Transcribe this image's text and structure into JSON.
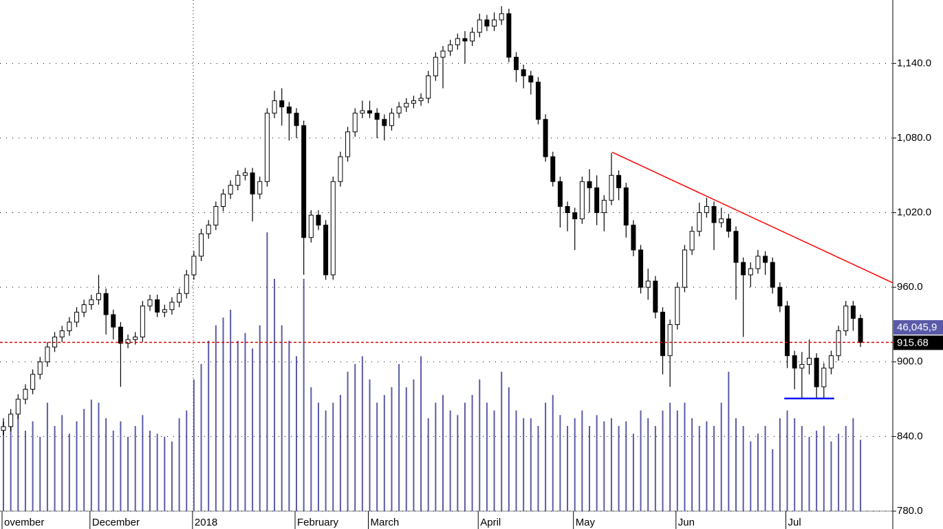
{
  "chart_data": {
    "type": "candlestick",
    "up_color": "#ffffff",
    "down_color": "#000000",
    "volume_color": "#5a5aa8",
    "ylim": [
      780,
      1191
    ],
    "vlim": [
      0,
      330
    ],
    "yticks": [
      {
        "value": 780,
        "label": "780.0"
      },
      {
        "value": 840,
        "label": "840.0"
      },
      {
        "value": 900,
        "label": "900.0"
      },
      {
        "value": 960,
        "label": "960.0"
      },
      {
        "value": 1020,
        "label": "1,020.0"
      },
      {
        "value": 1080,
        "label": "1,080.0"
      },
      {
        "value": 1140,
        "label": "1,140.0"
      }
    ],
    "grid": true,
    "last_volume_label": "46,045,9",
    "reference_color": "#dd0000",
    "categories": [
      "ovember",
      null,
      null,
      null,
      null,
      null,
      null,
      null,
      null,
      null,
      null,
      null,
      "December",
      null,
      null,
      null,
      null,
      null,
      null,
      null,
      null,
      null,
      null,
      null,
      null,
      null,
      "2018",
      null,
      null,
      null,
      null,
      null,
      null,
      null,
      null,
      null,
      null,
      null,
      null,
      null,
      "February",
      null,
      null,
      null,
      null,
      null,
      null,
      null,
      null,
      null,
      "March",
      null,
      null,
      null,
      null,
      null,
      null,
      null,
      null,
      null,
      null,
      null,
      null,
      null,
      null,
      "April",
      null,
      null,
      null,
      null,
      null,
      null,
      null,
      null,
      null,
      null,
      null,
      null,
      "May",
      null,
      null,
      null,
      null,
      null,
      null,
      null,
      null,
      null,
      null,
      null,
      null,
      null,
      "Jun",
      null,
      null,
      null,
      null,
      null,
      null,
      null,
      null,
      null,
      null,
      null,
      null,
      null,
      null,
      "Jul",
      null,
      null,
      null,
      null,
      null,
      null,
      null,
      null,
      null,
      null
    ],
    "ohlc": [
      [
        845,
        852,
        841,
        848
      ],
      [
        848,
        862,
        844,
        858
      ],
      [
        858,
        874,
        854,
        870
      ],
      [
        870,
        882,
        866,
        878
      ],
      [
        878,
        894,
        874,
        890
      ],
      [
        890,
        904,
        886,
        900
      ],
      [
        900,
        916,
        896,
        912
      ],
      [
        912,
        924,
        908,
        920
      ],
      [
        920,
        929,
        916,
        925
      ],
      [
        925,
        936,
        921,
        932
      ],
      [
        932,
        944,
        928,
        940
      ],
      [
        940,
        950,
        936,
        946
      ],
      [
        946,
        954,
        942,
        950
      ],
      [
        950,
        970,
        946,
        955
      ],
      [
        955,
        959,
        922,
        938
      ],
      [
        938,
        942,
        918,
        928
      ],
      [
        928,
        932,
        880,
        915
      ],
      [
        915,
        922,
        911,
        918
      ],
      [
        918,
        924,
        914,
        920
      ],
      [
        920,
        949,
        916,
        945
      ],
      [
        945,
        954,
        941,
        950
      ],
      [
        950,
        954,
        936,
        940
      ],
      [
        940,
        946,
        936,
        942
      ],
      [
        942,
        952,
        938,
        948
      ],
      [
        948,
        959,
        944,
        955
      ],
      [
        955,
        974,
        951,
        970
      ],
      [
        970,
        989,
        966,
        985
      ],
      [
        985,
        1007,
        981,
        1003
      ],
      [
        1003,
        1014,
        999,
        1010
      ],
      [
        1010,
        1029,
        1006,
        1025
      ],
      [
        1025,
        1039,
        1021,
        1035
      ],
      [
        1035,
        1046,
        1031,
        1042
      ],
      [
        1042,
        1054,
        1038,
        1050
      ],
      [
        1050,
        1056,
        1046,
        1052
      ],
      [
        1052,
        1056,
        1013,
        1035
      ],
      [
        1035,
        1049,
        1031,
        1045
      ],
      [
        1045,
        1104,
        1041,
        1100
      ],
      [
        1100,
        1118,
        1096,
        1110
      ],
      [
        1110,
        1120,
        1090,
        1105
      ],
      [
        1105,
        1109,
        1078,
        1100
      ],
      [
        1100,
        1104,
        1080,
        1090
      ],
      [
        1090,
        1094,
        970,
        1000
      ],
      [
        1000,
        1022,
        996,
        1018
      ],
      [
        1018,
        1022,
        1006,
        1010
      ],
      [
        1010,
        1014,
        966,
        970
      ],
      [
        970,
        1049,
        966,
        1045
      ],
      [
        1045,
        1069,
        1041,
        1065
      ],
      [
        1065,
        1089,
        1061,
        1085
      ],
      [
        1085,
        1104,
        1081,
        1100
      ],
      [
        1100,
        1110,
        1096,
        1102
      ],
      [
        1102,
        1110,
        1096,
        1100
      ],
      [
        1100,
        1104,
        1080,
        1095
      ],
      [
        1095,
        1099,
        1078,
        1090
      ],
      [
        1090,
        1104,
        1086,
        1100
      ],
      [
        1100,
        1109,
        1096,
        1105
      ],
      [
        1105,
        1112,
        1101,
        1108
      ],
      [
        1108,
        1114,
        1104,
        1110
      ],
      [
        1110,
        1116,
        1106,
        1112
      ],
      [
        1112,
        1134,
        1108,
        1130
      ],
      [
        1130,
        1149,
        1126,
        1145
      ],
      [
        1145,
        1154,
        1120,
        1150
      ],
      [
        1150,
        1159,
        1146,
        1155
      ],
      [
        1155,
        1164,
        1151,
        1160
      ],
      [
        1160,
        1166,
        1140,
        1158
      ],
      [
        1158,
        1169,
        1154,
        1165
      ],
      [
        1165,
        1180,
        1161,
        1175
      ],
      [
        1175,
        1179,
        1166,
        1170
      ],
      [
        1170,
        1181,
        1166,
        1175
      ],
      [
        1175,
        1186,
        1171,
        1180
      ],
      [
        1180,
        1184,
        1141,
        1145
      ],
      [
        1145,
        1149,
        1125,
        1135
      ],
      [
        1135,
        1139,
        1120,
        1130
      ],
      [
        1130,
        1134,
        1115,
        1125
      ],
      [
        1125,
        1129,
        1091,
        1095
      ],
      [
        1095,
        1099,
        1061,
        1065
      ],
      [
        1065,
        1069,
        1041,
        1045
      ],
      [
        1045,
        1049,
        1008,
        1025
      ],
      [
        1025,
        1029,
        1005,
        1020
      ],
      [
        1020,
        1024,
        990,
        1015
      ],
      [
        1015,
        1049,
        1011,
        1045
      ],
      [
        1045,
        1055,
        1020,
        1040
      ],
      [
        1040,
        1050,
        1010,
        1020
      ],
      [
        1020,
        1034,
        1005,
        1030
      ],
      [
        1030,
        1068,
        1026,
        1050
      ],
      [
        1050,
        1054,
        1030,
        1040
      ],
      [
        1040,
        1044,
        1000,
        1010
      ],
      [
        1010,
        1014,
        985,
        990
      ],
      [
        990,
        994,
        955,
        960
      ],
      [
        960,
        975,
        950,
        965
      ],
      [
        965,
        969,
        935,
        940
      ],
      [
        940,
        944,
        890,
        905
      ],
      [
        905,
        934,
        880,
        930
      ],
      [
        930,
        964,
        926,
        960
      ],
      [
        960,
        994,
        956,
        990
      ],
      [
        990,
        1009,
        986,
        1005
      ],
      [
        1005,
        1028,
        1001,
        1020
      ],
      [
        1020,
        1032,
        1016,
        1025
      ],
      [
        1025,
        1029,
        990,
        1012
      ],
      [
        1012,
        1024,
        1008,
        1015
      ],
      [
        1015,
        1019,
        1000,
        1005
      ],
      [
        1005,
        1009,
        950,
        980
      ],
      [
        980,
        984,
        920,
        970
      ],
      [
        970,
        980,
        960,
        975
      ],
      [
        975,
        990,
        971,
        985
      ],
      [
        985,
        989,
        970,
        980
      ],
      [
        980,
        984,
        955,
        960
      ],
      [
        960,
        964,
        940,
        945
      ],
      [
        945,
        949,
        895,
        905
      ],
      [
        905,
        909,
        878,
        895
      ],
      [
        895,
        908,
        870,
        898
      ],
      [
        898,
        918,
        890,
        903
      ],
      [
        903,
        907,
        870,
        880
      ],
      [
        880,
        899,
        870,
        895
      ],
      [
        895,
        909,
        890,
        905
      ],
      [
        905,
        929,
        901,
        925
      ],
      [
        925,
        949,
        921,
        945
      ],
      [
        945,
        949,
        925,
        935
      ],
      [
        935,
        938,
        912,
        915.68
      ]
    ],
    "volume": [
      60,
      55,
      62,
      52,
      58,
      48,
      70,
      55,
      62,
      50,
      58,
      66,
      72,
      70,
      60,
      52,
      58,
      48,
      55,
      62,
      52,
      50,
      48,
      45,
      60,
      65,
      85,
      95,
      110,
      120,
      125,
      130,
      110,
      115,
      105,
      120,
      180,
      150,
      120,
      110,
      100,
      150,
      80,
      70,
      65,
      70,
      75,
      90,
      95,
      100,
      85,
      70,
      75,
      80,
      95,
      80,
      85,
      100,
      60,
      70,
      75,
      65,
      62,
      70,
      75,
      85,
      70,
      65,
      90,
      80,
      65,
      60,
      60,
      55,
      70,
      75,
      62,
      55,
      60,
      65,
      55,
      62,
      58,
      60,
      55,
      58,
      50,
      65,
      60,
      55,
      65,
      70,
      65,
      70,
      60,
      55,
      58,
      55,
      70,
      90,
      60,
      55,
      45,
      50,
      55,
      40,
      60,
      65,
      60,
      55,
      48,
      52,
      55,
      45,
      50,
      55,
      60,
      46.0459
    ],
    "trendlines": [
      {
        "color": "#ff0000",
        "from": [
          83.1,
          1068.6
        ],
        "to": [
          121.4,
          963.6
        ]
      },
      {
        "color": "#0000ff",
        "from": [
          106.6,
          870.6
        ],
        "to": [
          113.4,
          870.6
        ]
      }
    ]
  }
}
